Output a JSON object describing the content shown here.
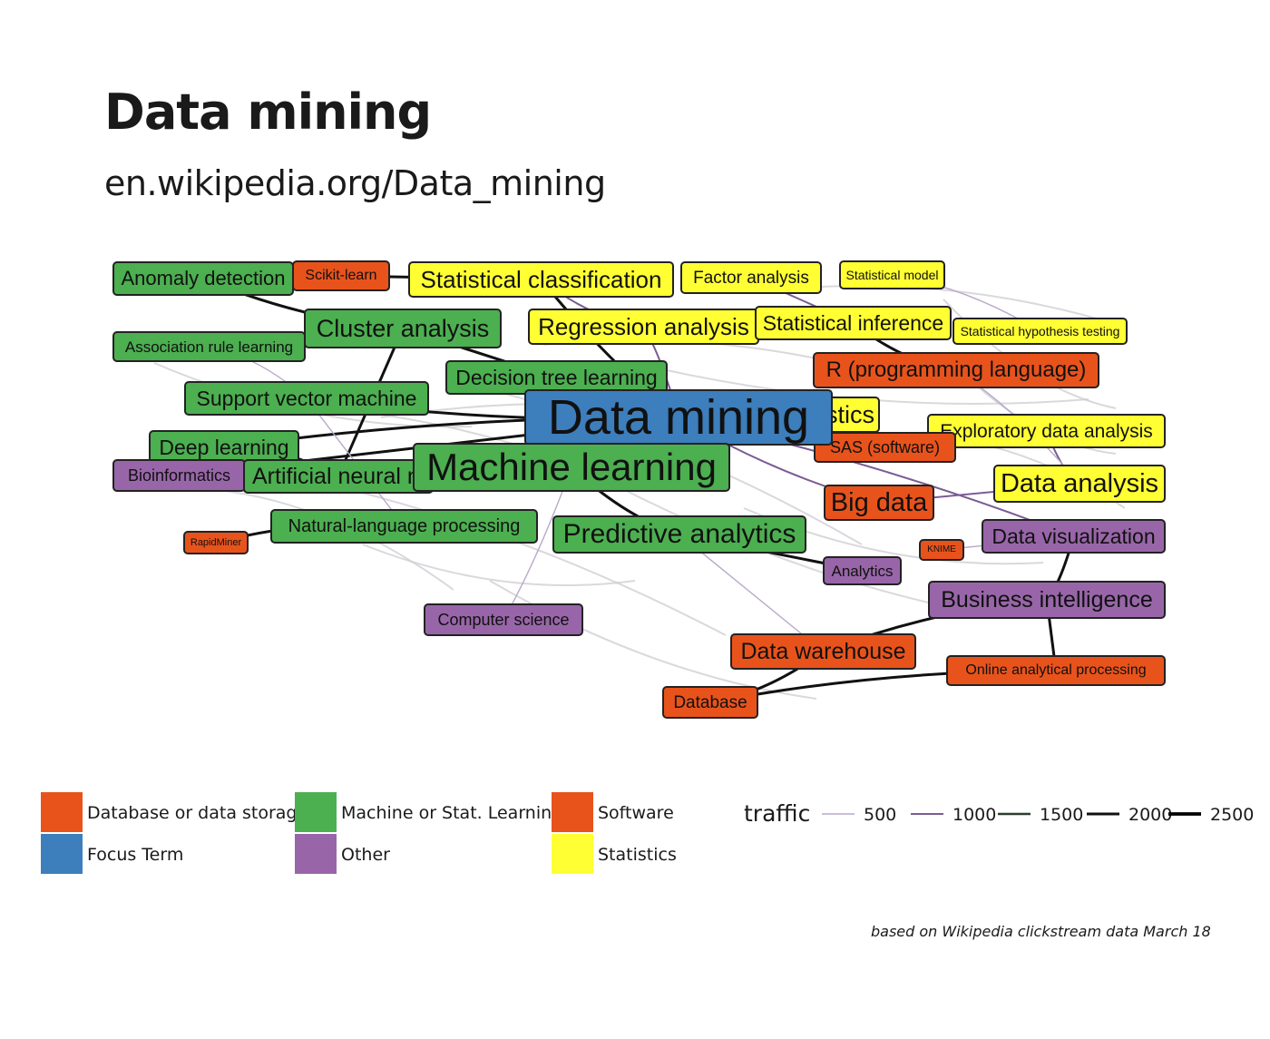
{
  "title": "Data mining",
  "subtitle": "en.wikipedia.org/Data_mining",
  "caption": "based on Wikipedia clickstream data March 18",
  "colors": {
    "Database or data storage": "#e8531c",
    "Focus Term": "#3d7ebc",
    "Machine or Stat. Learning": "#4caf50",
    "Other": "#9866a8",
    "Software": "#e8531c",
    "Statistics": "#ffff33"
  },
  "legend": {
    "category_title": "",
    "categories": [
      "Database or data storage",
      "Focus Term",
      "Machine or Stat. Learning",
      "Other",
      "Software",
      "Statistics"
    ],
    "traffic_title": "traffic",
    "traffic_values": [
      "500",
      "1000",
      "1500",
      "2000",
      "2500"
    ]
  },
  "nodes": [
    {
      "id": "Data mining",
      "category": "Focus Term"
    },
    {
      "id": "Anomaly detection",
      "category": "Machine or Stat. Learning"
    },
    {
      "id": "Scikit-learn",
      "category": "Software"
    },
    {
      "id": "Statistical classification",
      "category": "Statistics"
    },
    {
      "id": "Factor analysis",
      "category": "Statistics"
    },
    {
      "id": "Statistical model",
      "category": "Statistics"
    },
    {
      "id": "Association rule learning",
      "category": "Machine or Stat. Learning"
    },
    {
      "id": "Cluster analysis",
      "category": "Machine or Stat. Learning"
    },
    {
      "id": "Regression analysis",
      "category": "Statistics"
    },
    {
      "id": "Statistical inference",
      "category": "Statistics"
    },
    {
      "id": "Statistical hypothesis testing",
      "category": "Statistics"
    },
    {
      "id": "R (programming language)",
      "category": "Software"
    },
    {
      "id": "Decision tree learning",
      "category": "Machine or Stat. Learning"
    },
    {
      "id": "Support vector machine",
      "category": "Machine or Stat. Learning"
    },
    {
      "id": "Statistics",
      "category": "Statistics"
    },
    {
      "id": "Exploratory data analysis",
      "category": "Statistics"
    },
    {
      "id": "SAS (software)",
      "category": "Software"
    },
    {
      "id": "Deep learning",
      "category": "Machine or Stat. Learning"
    },
    {
      "id": "Bioinformatics",
      "category": "Other"
    },
    {
      "id": "Artificial neural network",
      "category": "Machine or Stat. Learning"
    },
    {
      "id": "Machine learning",
      "category": "Machine or Stat. Learning"
    },
    {
      "id": "Data analysis",
      "category": "Statistics"
    },
    {
      "id": "Big data",
      "category": "Database or data storage"
    },
    {
      "id": "Natural-language processing",
      "category": "Machine or Stat. Learning"
    },
    {
      "id": "RapidMiner",
      "category": "Software"
    },
    {
      "id": "Predictive analytics",
      "category": "Machine or Stat. Learning"
    },
    {
      "id": "Data visualization",
      "category": "Other"
    },
    {
      "id": "KNIME",
      "category": "Software"
    },
    {
      "id": "Analytics",
      "category": "Other"
    },
    {
      "id": "Business intelligence",
      "category": "Other"
    },
    {
      "id": "Computer science",
      "category": "Other"
    },
    {
      "id": "Data warehouse",
      "category": "Database or data storage"
    },
    {
      "id": "Online analytical processing",
      "category": "Database or data storage"
    },
    {
      "id": "Database",
      "category": "Database or data storage"
    }
  ],
  "edges": [
    {
      "source": "Anomaly detection",
      "target": "Scikit-learn",
      "traffic": 2000
    },
    {
      "source": "Scikit-learn",
      "target": "Statistical classification",
      "traffic": 2000
    },
    {
      "source": "Anomaly detection",
      "target": "Cluster analysis",
      "traffic": 2000
    },
    {
      "source": "Association rule learning",
      "target": "Support vector machine",
      "traffic": 500
    },
    {
      "source": "Cluster analysis",
      "target": "Data mining",
      "traffic": 2000
    },
    {
      "source": "Statistical classification",
      "target": "Data mining",
      "traffic": 2000
    },
    {
      "source": "Regression analysis",
      "target": "Data mining",
      "traffic": 1000
    },
    {
      "source": "Decision tree learning",
      "target": "Data mining",
      "traffic": 2000
    },
    {
      "source": "Support vector machine",
      "target": "Data mining",
      "traffic": 2000
    },
    {
      "source": "Deep learning",
      "target": "Data mining",
      "traffic": 2000
    },
    {
      "source": "Bioinformatics",
      "target": "Data mining",
      "traffic": 2000
    },
    {
      "source": "Statistical inference",
      "target": "R (programming language)",
      "traffic": 2000
    },
    {
      "source": "Statistics",
      "target": "SAS (software)",
      "traffic": 2000
    },
    {
      "source": "Data mining",
      "target": "Machine learning",
      "traffic": 2500
    },
    {
      "source": "Machine learning",
      "target": "Predictive analytics",
      "traffic": 2000
    },
    {
      "source": "Natural-language processing",
      "target": "RapidMiner",
      "traffic": 2000
    },
    {
      "source": "Predictive analytics",
      "target": "Analytics",
      "traffic": 2000
    },
    {
      "source": "Data visualization",
      "target": "Business intelligence",
      "traffic": 2000
    },
    {
      "source": "Business intelligence",
      "target": "Data warehouse",
      "traffic": 2000
    },
    {
      "source": "Business intelligence",
      "target": "Online analytical processing",
      "traffic": 2000
    },
    {
      "source": "Data warehouse",
      "target": "Database",
      "traffic": 2000
    },
    {
      "source": "Online analytical processing",
      "target": "Database",
      "traffic": 2000
    },
    {
      "source": "Big data",
      "target": "Data analysis",
      "traffic": 1000
    },
    {
      "source": "Exploratory data analysis",
      "target": "Data analysis",
      "traffic": 1000
    },
    {
      "source": "Statistical model",
      "target": "Statistical hypothesis testing",
      "traffic": 500
    },
    {
      "source": "Factor analysis",
      "target": "Statistical inference",
      "traffic": 1000
    },
    {
      "source": "Machine learning",
      "target": "Computer science",
      "traffic": 500
    },
    {
      "source": "Artificial neural network",
      "target": "Deep learning",
      "traffic": 2000
    },
    {
      "source": "Cluster analysis",
      "target": "Artificial neural network",
      "traffic": 2000
    },
    {
      "source": "Data mining",
      "target": "Big data",
      "traffic": 1000
    },
    {
      "source": "Data mining",
      "target": "Data visualization",
      "traffic": 1000
    },
    {
      "source": "KNIME",
      "target": "Data visualization",
      "traffic": 500
    },
    {
      "source": "Regression analysis",
      "target": "Statistical inference",
      "traffic": 1000
    },
    {
      "source": "Data mining",
      "target": "Statistics",
      "traffic": 1000
    },
    {
      "source": "Support vector machine",
      "target": "Natural-language processing",
      "traffic": 500
    },
    {
      "source": "Statistical classification",
      "target": "Regression analysis",
      "traffic": 1000
    },
    {
      "source": "R (programming language)",
      "target": "Data analysis",
      "traffic": 500
    },
    {
      "source": "Predictive analytics",
      "target": "Data warehouse",
      "traffic": 500
    }
  ]
}
